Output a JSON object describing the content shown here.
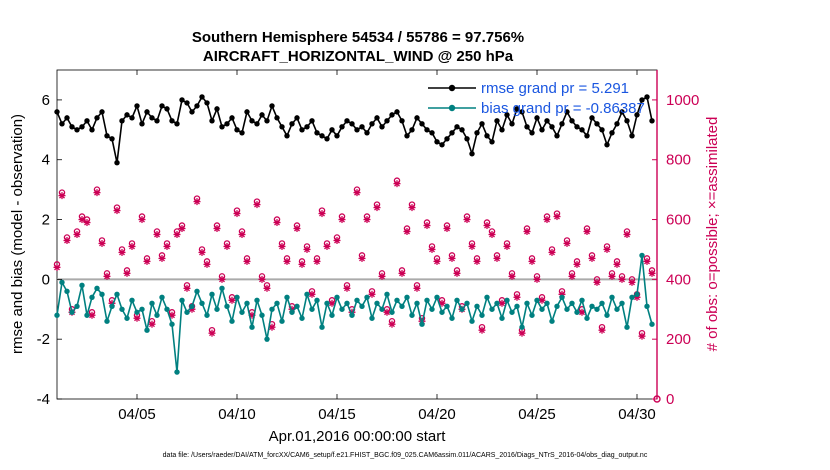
{
  "chart_data": {
    "type": "line",
    "title": "Southern Hemisphere 54534 / 55786 = 97.756%",
    "subtitle": "AIRCRAFT_HORIZONTAL_WIND @ 250 hPa",
    "xlabel": "Apr.01,2016 00:00:00 start",
    "ylabel": "rmse and bias (model - observation)",
    "y2label": "# of obs: o=possible; ×=assimilated",
    "footer": "data file: /Users/raeder/DAI/ATM_forcXX/CAM6_setup/f.e21.FHIST_BGC.f09_025.CAM6assim.011/ACARS_2016/Diags_NTrS_2016-04/obs_diag_output.nc",
    "xlim": [
      1.0,
      31.0
    ],
    "ylim": [
      -4,
      7
    ],
    "y2lim": [
      0,
      1100
    ],
    "xticks": [
      5,
      10,
      15,
      20,
      25,
      30
    ],
    "xtick_labels": [
      "04/05",
      "04/10",
      "04/15",
      "04/20",
      "04/25",
      "04/30"
    ],
    "yticks": [
      -4,
      -2,
      0,
      2,
      4,
      6
    ],
    "ytick_labels": [
      "-4",
      "-2",
      "0",
      "2",
      "4",
      "6"
    ],
    "y2ticks": [
      0,
      200,
      400,
      600,
      800,
      1000
    ],
    "y2tick_labels": [
      "0",
      "200",
      "400",
      "600",
      "800",
      "1000"
    ],
    "colors": {
      "rmse": "#000000",
      "bias": "#008080",
      "obs": "#cc0055",
      "right_axis": "#cc0055",
      "zero_line": "#aaaaaa",
      "legend_text": "#1a56e0"
    },
    "legend": [
      "rmse grand pr = 5.291",
      "bias grand pr = -0.86387"
    ],
    "legend_position": "top-right",
    "x": [
      1.0,
      1.25,
      1.5,
      1.75,
      2.0,
      2.25,
      2.5,
      2.75,
      3.0,
      3.25,
      3.5,
      3.75,
      4.0,
      4.25,
      4.5,
      4.75,
      5.0,
      5.25,
      5.5,
      5.75,
      6.0,
      6.25,
      6.5,
      6.75,
      7.0,
      7.25,
      7.5,
      7.75,
      8.0,
      8.25,
      8.5,
      8.75,
      9.0,
      9.25,
      9.5,
      9.75,
      10.0,
      10.25,
      10.5,
      10.75,
      11.0,
      11.25,
      11.5,
      11.75,
      12.0,
      12.25,
      12.5,
      12.75,
      13.0,
      13.25,
      13.5,
      13.75,
      14.0,
      14.25,
      14.5,
      14.75,
      15.0,
      15.25,
      15.5,
      15.75,
      16.0,
      16.25,
      16.5,
      16.75,
      17.0,
      17.25,
      17.5,
      17.75,
      18.0,
      18.25,
      18.5,
      18.75,
      19.0,
      19.25,
      19.5,
      19.75,
      20.0,
      20.25,
      20.5,
      20.75,
      21.0,
      21.25,
      21.5,
      21.75,
      22.0,
      22.25,
      22.5,
      22.75,
      23.0,
      23.25,
      23.5,
      23.75,
      24.0,
      24.25,
      24.5,
      24.75,
      25.0,
      25.25,
      25.5,
      25.75,
      26.0,
      26.25,
      26.5,
      26.75,
      27.0,
      27.25,
      27.5,
      27.75,
      28.0,
      28.25,
      28.5,
      28.75,
      29.0,
      29.25,
      29.5,
      29.75,
      30.0,
      30.25,
      30.5,
      30.75
    ],
    "series": [
      {
        "name": "rmse",
        "values": [
          5.6,
          5.2,
          5.4,
          5.1,
          5.0,
          5.1,
          5.3,
          5.0,
          5.4,
          5.6,
          4.8,
          4.7,
          3.9,
          5.3,
          5.5,
          5.4,
          5.8,
          5.2,
          5.6,
          5.4,
          5.3,
          5.8,
          5.7,
          5.3,
          5.2,
          6.0,
          5.9,
          5.6,
          5.8,
          6.1,
          5.9,
          5.3,
          5.7,
          5.1,
          5.2,
          5.4,
          5.0,
          4.9,
          5.6,
          5.3,
          5.2,
          5.5,
          5.3,
          5.8,
          5.4,
          5.1,
          4.8,
          5.2,
          5.4,
          5.0,
          5.1,
          5.3,
          4.9,
          4.8,
          4.7,
          5.0,
          4.8,
          5.1,
          5.3,
          5.2,
          5.0,
          5.1,
          4.9,
          5.2,
          5.4,
          5.1,
          5.3,
          5.5,
          5.6,
          5.3,
          4.8,
          5.0,
          5.4,
          5.2,
          5.0,
          4.9,
          4.6,
          4.5,
          4.7,
          4.9,
          5.1,
          5.0,
          4.7,
          4.2,
          4.9,
          5.2,
          4.8,
          4.6,
          5.3,
          5.0,
          5.5,
          5.2,
          5.7,
          5.6,
          5.1,
          4.9,
          5.4,
          5.0,
          5.3,
          5.1,
          4.8,
          5.2,
          5.6,
          5.3,
          5.1,
          5.0,
          4.8,
          5.4,
          5.2,
          5.0,
          4.5,
          4.9,
          5.2,
          5.6,
          5.3,
          4.8,
          5.5,
          6.0,
          6.1,
          5.3
        ],
        "values_note": "approximate"
      },
      {
        "name": "bias",
        "values": [
          -1.2,
          -0.1,
          -0.4,
          -1.1,
          -0.9,
          -0.2,
          -1.2,
          -0.6,
          -0.3,
          -0.5,
          -1.4,
          -0.9,
          -0.5,
          -1.0,
          -1.3,
          -0.7,
          -1.1,
          -1.0,
          -1.7,
          -0.8,
          -1.2,
          -0.6,
          -1.0,
          -1.5,
          -3.1,
          -0.7,
          -1.1,
          -0.9,
          -0.4,
          -0.8,
          -1.2,
          -0.5,
          -1.0,
          -0.3,
          -0.9,
          -1.4,
          -0.6,
          -1.1,
          -0.8,
          -1.6,
          -0.7,
          -1.2,
          -2.0,
          -1.0,
          -0.8,
          -1.4,
          -0.6,
          -1.1,
          -0.9,
          -1.3,
          -0.5,
          -1.0,
          -0.7,
          -1.6,
          -0.8,
          -1.2,
          -0.6,
          -1.0,
          -0.8,
          -1.2,
          -0.7,
          -0.9,
          -0.6,
          -1.3,
          -0.8,
          -1.0,
          -0.5,
          -1.1,
          -0.7,
          -0.9,
          -0.6,
          -1.2,
          -0.8,
          -1.5,
          -0.7,
          -1.0,
          -0.6,
          -1.1,
          -0.9,
          -1.3,
          -0.7,
          -1.0,
          -0.8,
          -1.4,
          -0.9,
          -1.2,
          -0.6,
          -1.0,
          -0.8,
          -1.3,
          -0.7,
          -1.1,
          -0.9,
          -1.6,
          -0.8,
          -1.2,
          -0.7,
          -1.0,
          -0.8,
          -1.4,
          -0.9,
          -0.6,
          -1.0,
          -0.8,
          -1.1,
          -0.7,
          -1.3,
          -0.9,
          -1.0,
          -0.8,
          -1.2,
          -0.6,
          -1.0,
          -0.8,
          -1.6,
          -0.6,
          -0.5,
          0.8,
          -0.9,
          -1.5
        ],
        "values_note": "approximate"
      },
      {
        "name": "possible_obs",
        "marker": "o",
        "values": [
          450,
          690,
          540,
          300,
          560,
          610,
          600,
          290,
          700,
          530,
          420,
          330,
          640,
          500,
          430,
          520,
          280,
          610,
          470,
          260,
          560,
          480,
          520,
          290,
          560,
          580,
          380,
          310,
          670,
          500,
          460,
          230,
          580,
          410,
          520,
          340,
          630,
          560,
          470,
          290,
          660,
          410,
          380,
          250,
          600,
          520,
          470,
          310,
          580,
          460,
          510,
          360,
          470,
          630,
          520,
          330,
          540,
          610,
          380,
          300,
          700,
          480,
          610,
          360,
          650,
          420,
          300,
          260,
          730,
          430,
          570,
          650,
          380,
          270,
          590,
          510,
          470,
          330,
          580,
          480,
          430,
          310,
          610,
          520,
          470,
          240,
          590,
          560,
          480,
          330,
          520,
          420,
          350,
          230,
          570,
          470,
          410,
          340,
          610,
          500,
          620,
          360,
          530,
          420,
          460,
          300,
          570,
          480,
          400,
          240,
          510,
          420,
          460,
          410,
          560,
          400,
          350,
          220,
          470,
          430
        ],
        "values_note": "approximate"
      },
      {
        "name": "assimilated_obs",
        "marker": "x",
        "values": [
          440,
          680,
          530,
          290,
          550,
          600,
          590,
          280,
          690,
          520,
          410,
          320,
          630,
          490,
          420,
          510,
          270,
          600,
          460,
          250,
          550,
          470,
          510,
          280,
          550,
          570,
          370,
          300,
          660,
          490,
          450,
          220,
          570,
          400,
          510,
          330,
          620,
          550,
          460,
          280,
          650,
          400,
          370,
          240,
          590,
          510,
          460,
          300,
          570,
          450,
          500,
          350,
          460,
          620,
          510,
          320,
          530,
          600,
          370,
          290,
          690,
          470,
          600,
          350,
          640,
          410,
          290,
          250,
          720,
          420,
          560,
          640,
          370,
          260,
          580,
          500,
          460,
          320,
          570,
          470,
          420,
          300,
          600,
          510,
          460,
          230,
          580,
          550,
          470,
          320,
          510,
          410,
          340,
          220,
          560,
          460,
          400,
          330,
          600,
          490,
          610,
          350,
          520,
          410,
          450,
          290,
          560,
          470,
          390,
          230,
          500,
          410,
          450,
          400,
          550,
          390,
          340,
          210,
          460,
          420
        ],
        "values_note": "approximate"
      }
    ]
  }
}
